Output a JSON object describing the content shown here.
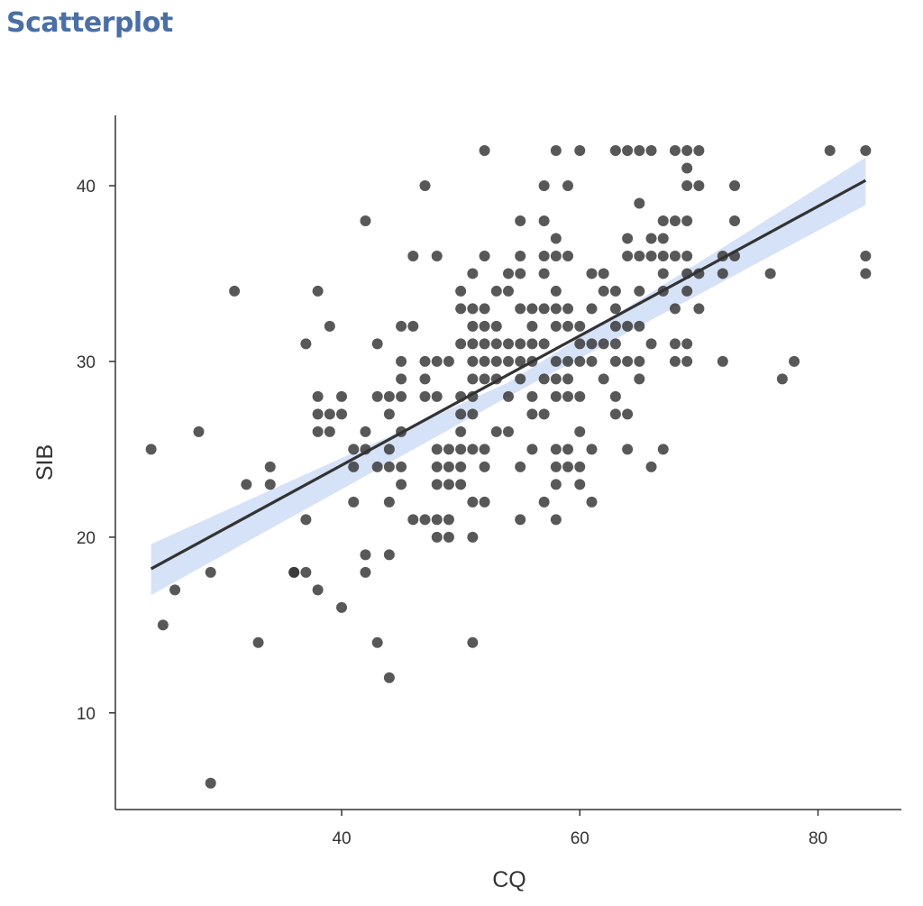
{
  "page": {
    "title": "Scatterplot"
  },
  "colors": {
    "title": "#4a6fa5",
    "points": "#333333",
    "band": "#d6e2f7",
    "line": "#333333",
    "axis": "#333333"
  },
  "chart_data": {
    "type": "scatter",
    "title": "",
    "xlabel": "CQ",
    "ylabel": "SIB",
    "xlim": [
      21,
      87
    ],
    "ylim": [
      4.5,
      44
    ],
    "xticks": [
      40,
      60,
      80
    ],
    "yticks": [
      10,
      20,
      30,
      40
    ],
    "grid": false,
    "trend_line": {
      "method": "linear",
      "x": [
        24,
        84
      ],
      "y": [
        18.2,
        40.3
      ]
    },
    "confidence_band": {
      "x": [
        24,
        54,
        84
      ],
      "upper": [
        19.6,
        28.8,
        41.6
      ],
      "lower": [
        16.7,
        28.0,
        38.9
      ]
    },
    "points": [
      [
        24,
        25
      ],
      [
        25,
        15
      ],
      [
        26,
        17
      ],
      [
        28,
        26
      ],
      [
        29,
        18
      ],
      [
        29,
        6
      ],
      [
        31,
        34
      ],
      [
        32,
        23
      ],
      [
        33,
        14
      ],
      [
        34,
        24
      ],
      [
        34,
        23
      ],
      [
        36,
        18
      ],
      [
        36,
        18
      ],
      [
        37,
        18
      ],
      [
        37,
        21
      ],
      [
        37,
        31
      ],
      [
        38,
        34
      ],
      [
        38,
        28
      ],
      [
        38,
        27
      ],
      [
        38,
        26
      ],
      [
        38,
        17
      ],
      [
        39,
        32
      ],
      [
        39,
        27
      ],
      [
        39,
        26
      ],
      [
        40,
        28
      ],
      [
        40,
        27
      ],
      [
        40,
        16
      ],
      [
        41,
        25
      ],
      [
        41,
        24
      ],
      [
        41,
        22
      ],
      [
        42,
        38
      ],
      [
        42,
        26
      ],
      [
        42,
        25
      ],
      [
        42,
        19
      ],
      [
        42,
        18
      ],
      [
        43,
        31
      ],
      [
        43,
        28
      ],
      [
        43,
        24
      ],
      [
        43,
        14
      ],
      [
        44,
        28
      ],
      [
        44,
        27
      ],
      [
        44,
        25
      ],
      [
        44,
        24
      ],
      [
        44,
        22
      ],
      [
        44,
        19
      ],
      [
        44,
        12
      ],
      [
        45,
        32
      ],
      [
        45,
        30
      ],
      [
        45,
        29
      ],
      [
        45,
        28
      ],
      [
        45,
        26
      ],
      [
        45,
        24
      ],
      [
        45,
        23
      ],
      [
        46,
        36
      ],
      [
        46,
        32
      ],
      [
        46,
        21
      ],
      [
        47,
        40
      ],
      [
        47,
        30
      ],
      [
        47,
        29
      ],
      [
        47,
        28
      ],
      [
        47,
        21
      ],
      [
        48,
        36
      ],
      [
        48,
        30
      ],
      [
        48,
        28
      ],
      [
        48,
        25
      ],
      [
        48,
        24
      ],
      [
        48,
        23
      ],
      [
        48,
        21
      ],
      [
        48,
        20
      ],
      [
        49,
        30
      ],
      [
        49,
        25
      ],
      [
        49,
        24
      ],
      [
        49,
        23
      ],
      [
        49,
        21
      ],
      [
        49,
        20
      ],
      [
        50,
        34
      ],
      [
        50,
        33
      ],
      [
        50,
        31
      ],
      [
        50,
        28
      ],
      [
        50,
        27
      ],
      [
        50,
        26
      ],
      [
        50,
        25
      ],
      [
        50,
        24
      ],
      [
        50,
        23
      ],
      [
        51,
        35
      ],
      [
        51,
        33
      ],
      [
        51,
        32
      ],
      [
        51,
        31
      ],
      [
        51,
        30
      ],
      [
        51,
        29
      ],
      [
        51,
        28
      ],
      [
        51,
        27
      ],
      [
        51,
        25
      ],
      [
        51,
        22
      ],
      [
        51,
        20
      ],
      [
        51,
        14
      ],
      [
        52,
        42
      ],
      [
        52,
        36
      ],
      [
        52,
        33
      ],
      [
        52,
        32
      ],
      [
        52,
        31
      ],
      [
        52,
        30
      ],
      [
        52,
        29
      ],
      [
        52,
        25
      ],
      [
        52,
        24
      ],
      [
        52,
        22
      ],
      [
        53,
        34
      ],
      [
        53,
        32
      ],
      [
        53,
        31
      ],
      [
        53,
        30
      ],
      [
        53,
        29
      ],
      [
        53,
        26
      ],
      [
        54,
        35
      ],
      [
        54,
        34
      ],
      [
        54,
        31
      ],
      [
        54,
        30
      ],
      [
        54,
        28
      ],
      [
        54,
        26
      ],
      [
        55,
        38
      ],
      [
        55,
        36
      ],
      [
        55,
        35
      ],
      [
        55,
        33
      ],
      [
        55,
        31
      ],
      [
        55,
        30
      ],
      [
        55,
        29
      ],
      [
        55,
        24
      ],
      [
        55,
        21
      ],
      [
        56,
        33
      ],
      [
        56,
        32
      ],
      [
        56,
        31
      ],
      [
        56,
        30
      ],
      [
        56,
        28
      ],
      [
        56,
        27
      ],
      [
        56,
        25
      ],
      [
        57,
        40
      ],
      [
        57,
        38
      ],
      [
        57,
        36
      ],
      [
        57,
        35
      ],
      [
        57,
        33
      ],
      [
        57,
        31
      ],
      [
        57,
        29
      ],
      [
        57,
        27
      ],
      [
        57,
        22
      ],
      [
        58,
        42
      ],
      [
        58,
        37
      ],
      [
        58,
        36
      ],
      [
        58,
        34
      ],
      [
        58,
        33
      ],
      [
        58,
        32
      ],
      [
        58,
        30
      ],
      [
        58,
        29
      ],
      [
        58,
        28
      ],
      [
        58,
        25
      ],
      [
        58,
        24
      ],
      [
        58,
        23
      ],
      [
        58,
        21
      ],
      [
        59,
        40
      ],
      [
        59,
        36
      ],
      [
        59,
        33
      ],
      [
        59,
        32
      ],
      [
        59,
        30
      ],
      [
        59,
        29
      ],
      [
        59,
        28
      ],
      [
        59,
        25
      ],
      [
        59,
        24
      ],
      [
        60,
        42
      ],
      [
        60,
        32
      ],
      [
        60,
        31
      ],
      [
        60,
        30
      ],
      [
        60,
        28
      ],
      [
        60,
        26
      ],
      [
        60,
        24
      ],
      [
        60,
        23
      ],
      [
        61,
        35
      ],
      [
        61,
        33
      ],
      [
        61,
        31
      ],
      [
        61,
        30
      ],
      [
        61,
        25
      ],
      [
        61,
        22
      ],
      [
        62,
        35
      ],
      [
        62,
        34
      ],
      [
        62,
        31
      ],
      [
        62,
        29
      ],
      [
        63,
        42
      ],
      [
        63,
        34
      ],
      [
        63,
        33
      ],
      [
        63,
        32
      ],
      [
        63,
        31
      ],
      [
        63,
        30
      ],
      [
        63,
        28
      ],
      [
        63,
        27
      ],
      [
        64,
        42
      ],
      [
        64,
        37
      ],
      [
        64,
        36
      ],
      [
        64,
        32
      ],
      [
        64,
        30
      ],
      [
        64,
        27
      ],
      [
        64,
        25
      ],
      [
        65,
        42
      ],
      [
        65,
        39
      ],
      [
        65,
        36
      ],
      [
        65,
        34
      ],
      [
        65,
        32
      ],
      [
        65,
        30
      ],
      [
        65,
        29
      ],
      [
        66,
        42
      ],
      [
        66,
        37
      ],
      [
        66,
        36
      ],
      [
        66,
        31
      ],
      [
        66,
        24
      ],
      [
        67,
        38
      ],
      [
        67,
        37
      ],
      [
        67,
        36
      ],
      [
        67,
        35
      ],
      [
        67,
        34
      ],
      [
        67,
        25
      ],
      [
        68,
        42
      ],
      [
        68,
        38
      ],
      [
        68,
        36
      ],
      [
        68,
        33
      ],
      [
        68,
        31
      ],
      [
        68,
        30
      ],
      [
        69,
        42
      ],
      [
        69,
        41
      ],
      [
        69,
        40
      ],
      [
        69,
        38
      ],
      [
        69,
        36
      ],
      [
        69,
        35
      ],
      [
        69,
        34
      ],
      [
        69,
        31
      ],
      [
        69,
        30
      ],
      [
        70,
        42
      ],
      [
        70,
        40
      ],
      [
        70,
        35
      ],
      [
        70,
        33
      ],
      [
        72,
        36
      ],
      [
        72,
        35
      ],
      [
        72,
        30
      ],
      [
        73,
        40
      ],
      [
        73,
        38
      ],
      [
        73,
        36
      ],
      [
        76,
        35
      ],
      [
        77,
        29
      ],
      [
        78,
        30
      ],
      [
        81,
        42
      ],
      [
        84,
        42
      ],
      [
        84,
        36
      ],
      [
        84,
        35
      ]
    ]
  }
}
